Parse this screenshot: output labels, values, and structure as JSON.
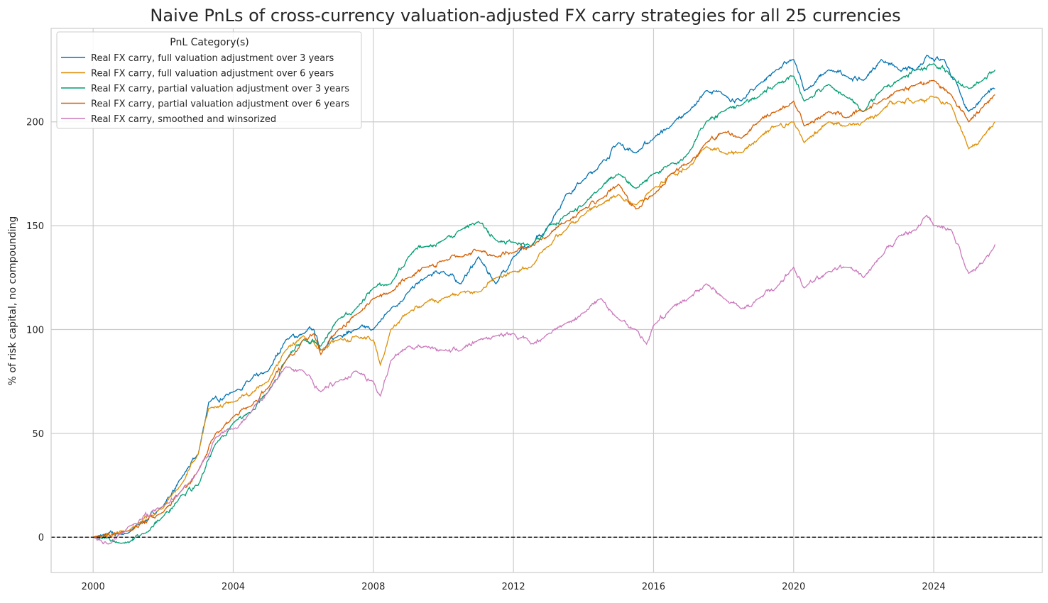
{
  "chart_data": {
    "type": "line",
    "title": "Naive PnLs of cross-currency valuation-adjusted FX carry strategies for all 25 currencies",
    "xlabel": "",
    "ylabel": "% of risk capital, no compounding",
    "xlim": [
      1998.8,
      2027.1
    ],
    "ylim": [
      -17,
      245
    ],
    "x_ticks": [
      2000,
      2004,
      2008,
      2012,
      2016,
      2020,
      2024
    ],
    "x_tick_labels": [
      "2000",
      "2004",
      "2008",
      "2012",
      "2016",
      "2020",
      "2024"
    ],
    "y_ticks": [
      0,
      50,
      100,
      150,
      200
    ],
    "y_tick_labels": [
      "0",
      "50",
      "100",
      "150",
      "200"
    ],
    "grid": true,
    "zero_line": {
      "y": 0,
      "style": "dashed",
      "color": "#000000"
    },
    "legend": {
      "title": "PnL Category(s)",
      "placement": "top-left"
    },
    "series": [
      {
        "name": "Real FX carry, full valuation adjustment over 3 years",
        "color": "#0173b2",
        "x": [
          2000,
          2001,
          2002,
          2002.5,
          2003,
          2003.3,
          2004,
          2005,
          2005.5,
          2006,
          2006.3,
          2006.5,
          2007,
          2007.5,
          2008,
          2008.5,
          2009,
          2009.5,
          2010,
          2010.5,
          2011,
          2011.5,
          2012,
          2012.5,
          2013,
          2013.5,
          2014,
          2014.5,
          2015,
          2015.5,
          2016,
          2016.5,
          2017,
          2017.5,
          2018,
          2018.5,
          2019,
          2019.5,
          2020,
          2020.3,
          2021,
          2021.5,
          2022,
          2022.5,
          2023,
          2023.5,
          2023.8,
          2024.3,
          2024.8,
          2025,
          2025.4,
          2025.75
        ],
        "y": [
          0,
          2,
          15,
          28,
          40,
          65,
          70,
          80,
          95,
          98,
          100,
          90,
          97,
          100,
          100,
          110,
          118,
          125,
          128,
          122,
          135,
          122,
          135,
          140,
          150,
          165,
          172,
          180,
          190,
          185,
          192,
          198,
          205,
          215,
          213,
          210,
          218,
          225,
          230,
          215,
          225,
          222,
          220,
          230,
          225,
          225,
          232,
          230,
          212,
          205,
          212,
          216
        ]
      },
      {
        "name": "Real FX carry, full valuation adjustment over 6 years",
        "color": "#de8f05",
        "x": [
          2000,
          2001,
          2002,
          2002.5,
          2003,
          2003.3,
          2004,
          2005,
          2005.5,
          2006,
          2006.5,
          2007,
          2007.5,
          2008,
          2008.2,
          2008.5,
          2009,
          2009.5,
          2010,
          2010.5,
          2011,
          2011.5,
          2012,
          2012.5,
          2013,
          2013.5,
          2014,
          2014.5,
          2015,
          2015.5,
          2016,
          2016.5,
          2017,
          2017.5,
          2018,
          2018.5,
          2019,
          2019.5,
          2020,
          2020.3,
          2021,
          2021.5,
          2022,
          2022.5,
          2023,
          2023.5,
          2024,
          2024.5,
          2025,
          2025.4,
          2025.75
        ],
        "y": [
          0,
          3,
          14,
          25,
          40,
          62,
          65,
          75,
          90,
          97,
          90,
          95,
          97,
          95,
          83,
          100,
          108,
          113,
          115,
          118,
          118,
          125,
          128,
          130,
          140,
          148,
          155,
          160,
          165,
          160,
          168,
          175,
          178,
          188,
          185,
          185,
          192,
          198,
          200,
          190,
          200,
          198,
          200,
          205,
          210,
          210,
          212,
          208,
          187,
          193,
          200
        ]
      },
      {
        "name": "Real FX carry, partial valuation adjustment over 3 years",
        "color": "#029e73",
        "x": [
          2000,
          2000.8,
          2001.5,
          2002,
          2002.5,
          2003,
          2003.5,
          2004,
          2004.5,
          2005,
          2005.5,
          2006,
          2006.5,
          2007,
          2007.5,
          2008,
          2008.5,
          2009,
          2009.5,
          2010,
          2010.5,
          2011,
          2011.5,
          2012,
          2012.5,
          2013,
          2013.5,
          2014,
          2014.5,
          2015,
          2015.5,
          2016,
          2016.5,
          2017,
          2017.5,
          2018,
          2018.5,
          2019,
          2019.5,
          2020,
          2020.3,
          2021,
          2021.5,
          2022,
          2022.5,
          2023,
          2023.5,
          2024,
          2024.5,
          2025,
          2025.4,
          2025.75
        ],
        "y": [
          0,
          -3,
          2,
          10,
          20,
          25,
          45,
          55,
          60,
          70,
          85,
          95,
          92,
          105,
          110,
          120,
          122,
          135,
          140,
          143,
          148,
          152,
          143,
          142,
          140,
          150,
          155,
          160,
          168,
          175,
          168,
          175,
          180,
          185,
          200,
          205,
          208,
          212,
          218,
          222,
          210,
          218,
          212,
          205,
          215,
          220,
          225,
          228,
          222,
          216,
          220,
          225
        ]
      },
      {
        "name": "Real FX carry, partial valuation adjustment over 6 years",
        "color": "#d55e00",
        "x": [
          2000,
          2001,
          2002,
          2002.5,
          2003,
          2003.5,
          2004,
          2004.5,
          2005,
          2005.5,
          2006,
          2006.3,
          2006.5,
          2007,
          2007.5,
          2008,
          2008.5,
          2009,
          2009.5,
          2010,
          2010.5,
          2011,
          2011.5,
          2012,
          2012.5,
          2013,
          2013.5,
          2014,
          2014.5,
          2015,
          2015.5,
          2016,
          2016.5,
          2017,
          2017.5,
          2018,
          2018.5,
          2019,
          2019.5,
          2020,
          2020.3,
          2021,
          2021.5,
          2022,
          2022.5,
          2023,
          2023.5,
          2024,
          2024.5,
          2025,
          2025.4,
          2025.75
        ],
        "y": [
          0,
          3,
          12,
          22,
          32,
          50,
          58,
          63,
          72,
          85,
          95,
          98,
          88,
          100,
          107,
          115,
          118,
          125,
          130,
          133,
          135,
          138,
          135,
          137,
          140,
          145,
          152,
          158,
          163,
          170,
          158,
          165,
          175,
          180,
          190,
          195,
          192,
          200,
          205,
          210,
          198,
          205,
          202,
          205,
          210,
          215,
          218,
          220,
          213,
          200,
          207,
          213
        ]
      },
      {
        "name": "Real FX carry, smoothed and winsorized",
        "color": "#cc78bc",
        "x": [
          2000,
          2000.5,
          2001,
          2002,
          2002.5,
          2003,
          2003.5,
          2004,
          2004.5,
          2005,
          2005.5,
          2006,
          2006.5,
          2007,
          2007.5,
          2008,
          2008.2,
          2008.5,
          2009,
          2009.5,
          2010,
          2010.5,
          2011,
          2011.5,
          2012,
          2012.5,
          2013,
          2013.5,
          2014,
          2014.5,
          2015,
          2015.5,
          2015.8,
          2016,
          2016.5,
          2017,
          2017.5,
          2018,
          2018.5,
          2019,
          2019.5,
          2020,
          2020.3,
          2021,
          2021.5,
          2022,
          2022.5,
          2023,
          2023.5,
          2023.8,
          2024,
          2024.5,
          2025,
          2025.4,
          2025.75
        ],
        "y": [
          0,
          -3,
          5,
          15,
          22,
          32,
          48,
          52,
          60,
          70,
          82,
          80,
          70,
          75,
          80,
          75,
          68,
          85,
          92,
          92,
          90,
          90,
          95,
          97,
          98,
          93,
          98,
          103,
          108,
          115,
          105,
          100,
          93,
          102,
          110,
          115,
          122,
          115,
          110,
          115,
          120,
          130,
          120,
          128,
          130,
          125,
          135,
          145,
          148,
          155,
          150,
          148,
          127,
          132,
          141
        ]
      }
    ]
  }
}
